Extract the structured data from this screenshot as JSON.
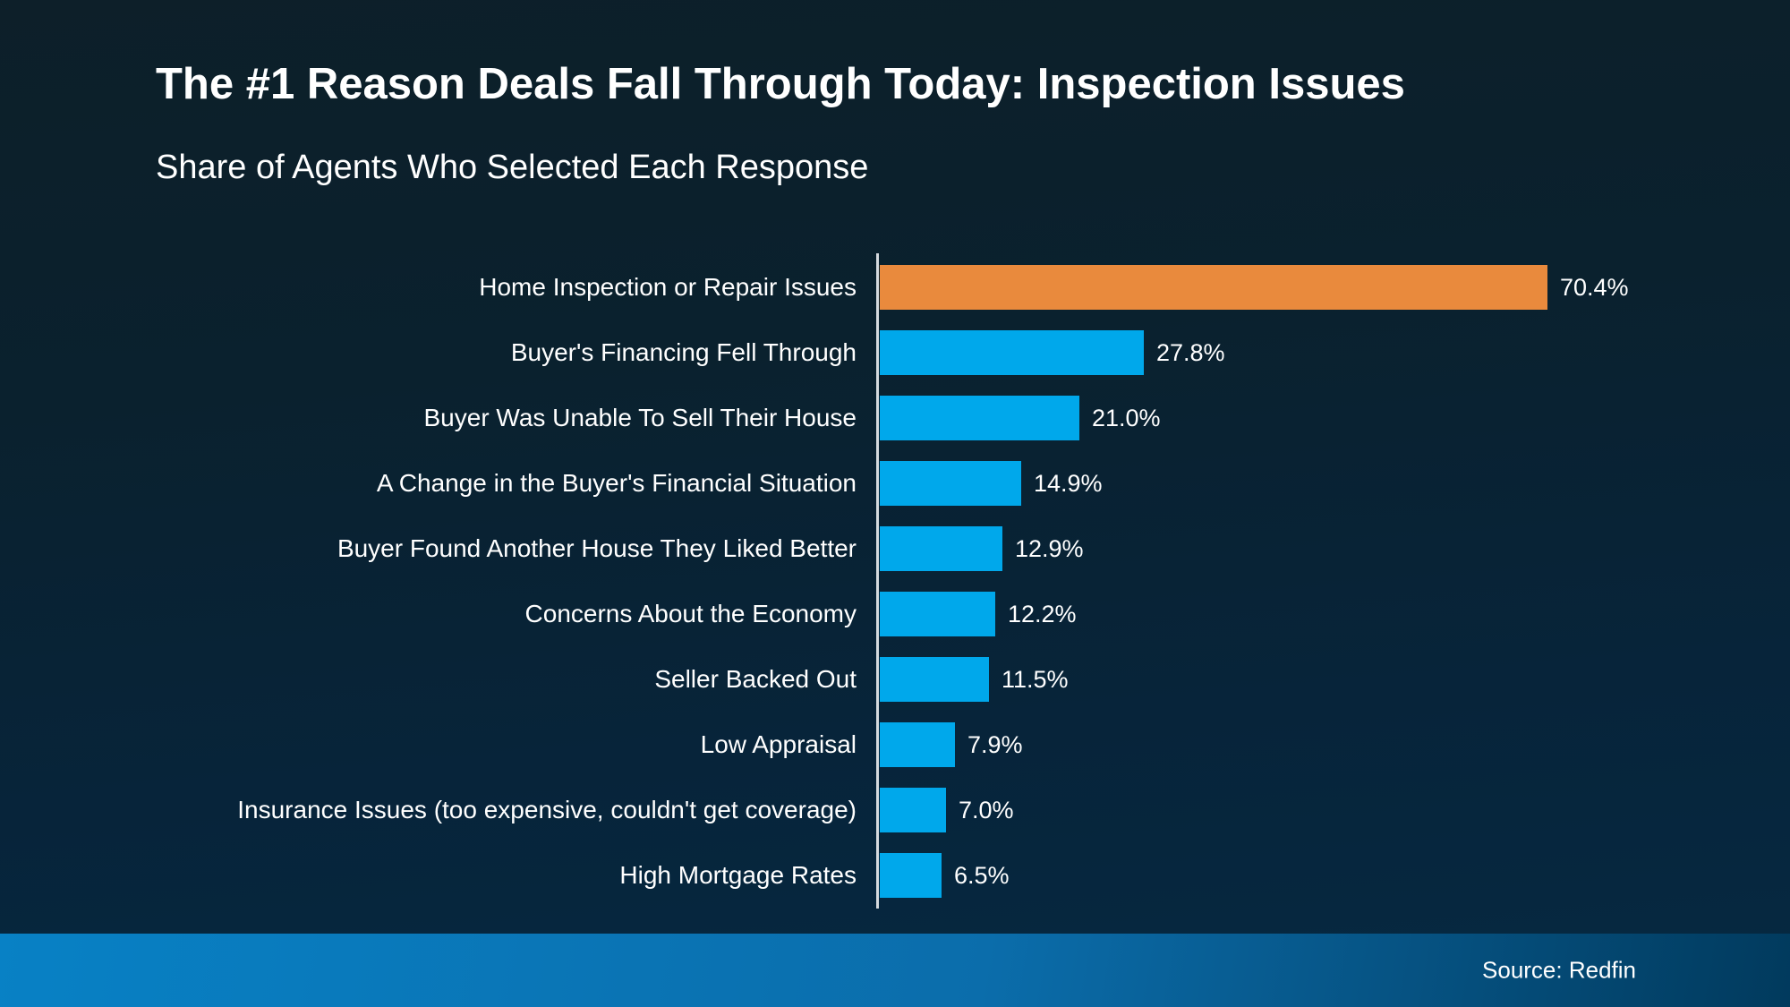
{
  "header": {
    "title": "The #1 Reason Deals Fall Through Today: Inspection Issues",
    "subtitle": "Share of Agents Who Selected Each Response"
  },
  "chart_data": {
    "type": "bar",
    "orientation": "horizontal",
    "title": "The #1 Reason Deals Fall Through Today: Inspection Issues",
    "subtitle": "Share of Agents Who Selected Each Response",
    "categories": [
      "Home Inspection or Repair Issues",
      "Buyer's Financing Fell Through",
      "Buyer Was Unable To Sell Their House",
      "A Change in the Buyer's Financial Situation",
      "Buyer Found Another House They Liked Better",
      "Concerns About the Economy",
      "Seller Backed Out",
      "Low Appraisal",
      "Insurance Issues (too expensive, couldn't get coverage)",
      "High Mortgage Rates"
    ],
    "values": [
      70.4,
      27.8,
      21.0,
      14.9,
      12.9,
      12.2,
      11.5,
      7.9,
      7.0,
      6.5
    ],
    "value_labels": [
      "70.4%",
      "27.8%",
      "21.0%",
      "14.9%",
      "12.9%",
      "12.2%",
      "11.5%",
      "7.9%",
      "7.0%",
      "6.5%"
    ],
    "xlim": [
      0,
      75
    ],
    "grid": false,
    "legend": false,
    "value_label_position": "right-of-bar",
    "highlight_index": 0,
    "colors": {
      "highlight_bar": "#e98a3d",
      "default_bar": "#00a8eb",
      "axis_line": "#d5dade",
      "text": "#ffffff"
    }
  },
  "footer": {
    "source": "Source: Redfin",
    "gradient_left": "#0881c5",
    "gradient_mid": "#0b6dab",
    "gradient_right": "#013a5d"
  }
}
